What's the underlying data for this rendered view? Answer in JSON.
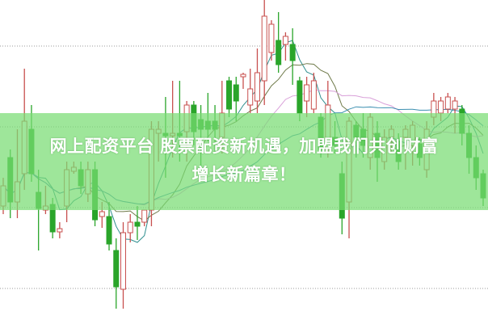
{
  "headline": {
    "line1": "网上配资平台 股票配资新机遇，加盟我们共创财富",
    "line2": "增长新篇章！"
  },
  "colors": {
    "up": "#c8504f",
    "down": "#2aa52a",
    "ma_short": "#2f8f8f",
    "ma_mid": "#6f7a4a",
    "ma_long": "#d9a0d9",
    "ma_trend": "#3a8fb0",
    "grid": "#9a9a9a",
    "banner": "#8fdc8a"
  },
  "chart_data": {
    "type": "candlestick",
    "title": "",
    "xlabel": "",
    "ylabel": "",
    "ylim": [
      0,
      400
    ],
    "grid": true,
    "grid_levels": [
      343,
      243,
      143,
      43
    ],
    "candles_ohlc": [
      [
        145,
        180,
        135,
        170
      ],
      [
        205,
        215,
        130,
        150
      ],
      [
        150,
        240,
        130,
        175
      ],
      [
        185,
        315,
        165,
        250
      ],
      [
        240,
        270,
        175,
        185
      ],
      [
        162,
        190,
        90,
        142
      ],
      [
        140,
        170,
        135,
        145
      ],
      [
        147,
        155,
        105,
        113
      ],
      [
        113,
        125,
        105,
        117
      ],
      [
        145,
        200,
        125,
        190
      ],
      [
        188,
        200,
        185,
        193
      ],
      [
        190,
        200,
        160,
        170
      ],
      [
        160,
        200,
        150,
        190
      ],
      [
        190,
        200,
        120,
        128
      ],
      [
        132,
        150,
        118,
        138
      ],
      [
        132,
        150,
        90,
        98
      ],
      [
        90,
        105,
        18,
        45
      ],
      [
        42,
        125,
        18,
        112
      ],
      [
        112,
        135,
        100,
        125
      ],
      [
        125,
        145,
        103,
        120
      ],
      [
        125,
        140,
        120,
        140
      ],
      [
        140,
        250,
        120,
        240
      ],
      [
        235,
        250,
        200,
        240
      ],
      [
        235,
        280,
        180,
        232
      ],
      [
        232,
        300,
        205,
        235
      ],
      [
        235,
        300,
        200,
        232
      ],
      [
        237,
        275,
        200,
        270
      ],
      [
        270,
        275,
        220,
        237
      ],
      [
        252,
        270,
        180,
        240
      ],
      [
        250,
        285,
        225,
        240
      ],
      [
        250,
        270,
        210,
        240
      ],
      [
        230,
        300,
        210,
        260
      ],
      [
        300,
        305,
        255,
        265
      ],
      [
        295,
        305,
        250,
        275
      ],
      [
        305,
        310,
        290,
        308
      ],
      [
        270,
        315,
        260,
        290
      ],
      [
        275,
        340,
        260,
        310
      ],
      [
        300,
        400,
        270,
        380
      ],
      [
        335,
        375,
        325,
        370
      ],
      [
        350,
        385,
        310,
        320
      ],
      [
        345,
        360,
        325,
        355
      ],
      [
        345,
        365,
        295,
        325
      ],
      [
        300,
        305,
        250,
        260
      ],
      [
        275,
        305,
        255,
        295
      ],
      [
        265,
        310,
        260,
        300
      ],
      [
        255,
        260,
        205,
        215
      ],
      [
        215,
        300,
        205,
        270
      ],
      [
        230,
        250,
        210,
        220
      ],
      [
        185,
        200,
        110,
        130
      ],
      [
        150,
        255,
        105,
        250
      ],
      [
        245,
        250,
        205,
        230
      ],
      [
        240,
        260,
        205,
        220
      ],
      [
        205,
        260,
        190,
        255
      ],
      [
        235,
        250,
        175,
        205
      ],
      [
        200,
        240,
        190,
        230
      ],
      [
        230,
        245,
        210,
        240
      ],
      [
        225,
        235,
        190,
        200
      ],
      [
        230,
        245,
        190,
        240
      ],
      [
        220,
        250,
        195,
        245
      ],
      [
        222,
        230,
        195,
        205
      ],
      [
        190,
        250,
        180,
        240
      ],
      [
        255,
        285,
        245,
        275
      ],
      [
        260,
        280,
        250,
        275
      ],
      [
        265,
        285,
        260,
        280
      ],
      [
        265,
        280,
        235,
        275
      ],
      [
        265,
        270,
        220,
        235
      ],
      [
        235,
        245,
        185,
        205
      ],
      [
        205,
        220,
        165,
        180
      ],
      [
        185,
        190,
        145,
        155
      ]
    ],
    "moving_average_periods": [
      5,
      10,
      20,
      30
    ]
  }
}
